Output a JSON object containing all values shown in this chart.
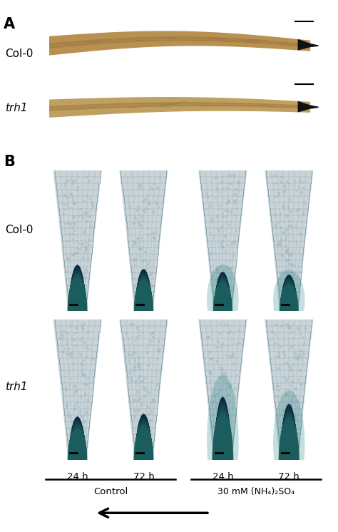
{
  "fig_width": 4.74,
  "fig_height": 7.46,
  "dpi": 100,
  "bg_color": "#ffffff",
  "panel_A_label": "A",
  "panel_B_label": "B",
  "row_labels_A": [
    "Col-0",
    "trh1"
  ],
  "row_labels_B": [
    "Col-0",
    "trh1"
  ],
  "time_labels": [
    "24 h",
    "72 h",
    "24 h",
    "72 h"
  ],
  "group_labels": [
    "Control",
    "30 mM (NH₄)₂SO₄"
  ],
  "label_fontsize": 11,
  "arrow_color": "#000000",
  "panel_A_outer_bg": "#e8e0cc",
  "panel_A_root_color": "#c0a060",
  "panel_A_tip_color": "#0a0a0a",
  "panel_B_bg": "#d0dde0",
  "panel_B_cell_color": "#b8ccd0",
  "panel_B_cell_edge": "#909090",
  "panel_B_stain_dark": "#0a2540",
  "panel_B_stain_teal": "#1a7070",
  "scale_bar_color": "#000000"
}
